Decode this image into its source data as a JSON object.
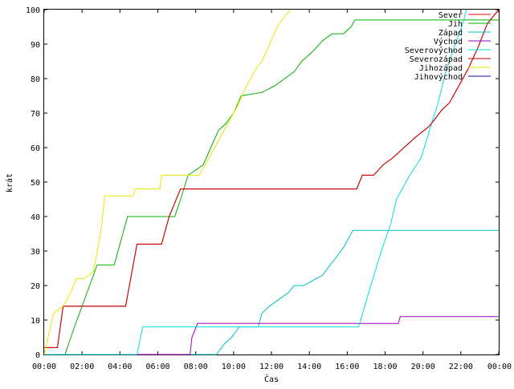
{
  "chart_data": {
    "type": "line",
    "title": "",
    "xlabel": "Čas",
    "ylabel": "krát",
    "xlim": [
      0,
      24
    ],
    "ylim": [
      0,
      100
    ],
    "x_ticks": [
      {
        "value": 0,
        "label": "00:00"
      },
      {
        "value": 2,
        "label": "02:00"
      },
      {
        "value": 4,
        "label": "04:00"
      },
      {
        "value": 6,
        "label": "06:00"
      },
      {
        "value": 8,
        "label": "08:00"
      },
      {
        "value": 10,
        "label": "10:00"
      },
      {
        "value": 12,
        "label": "12:00"
      },
      {
        "value": 14,
        "label": "14:00"
      },
      {
        "value": 16,
        "label": "16:00"
      },
      {
        "value": 18,
        "label": "18:00"
      },
      {
        "value": 20,
        "label": "20:00"
      },
      {
        "value": 22,
        "label": "22:00"
      },
      {
        "value": 24,
        "label": "00:00"
      }
    ],
    "y_ticks": [
      0,
      10,
      20,
      30,
      40,
      50,
      60,
      70,
      80,
      90,
      100
    ],
    "grid": false,
    "legend_position": "top-right",
    "series": [
      {
        "name": "Sever",
        "color": "#ff0000",
        "x": [
          0,
          0.7,
          1.0,
          4.3,
          4.9,
          6.2,
          6.6,
          6.9,
          7.2,
          16.5,
          16.8,
          17.4,
          17.9,
          18.4,
          19.0,
          19.6,
          20.3,
          20.6,
          21.0,
          21.4,
          21.9,
          22.4,
          22.9,
          23.4,
          24.0
        ],
        "y": [
          2,
          2,
          14,
          14,
          32,
          32,
          40,
          44,
          48,
          48,
          52,
          52,
          55,
          57,
          60,
          63,
          66,
          68,
          71,
          73,
          78,
          83,
          89,
          96,
          100
        ]
      },
      {
        "name": "Jih",
        "color": "#00b000",
        "x": [
          0,
          1.1,
          1.6,
          2.4,
          2.8,
          3.7,
          4.4,
          6.9,
          7.2,
          7.6,
          8.4,
          8.8,
          9.2,
          9.6,
          10.0,
          10.4,
          11.5,
          12.2,
          12.7,
          13.2,
          13.6,
          14.2,
          14.7,
          15.2,
          15.8,
          16.2,
          16.4,
          24.0
        ],
        "y": [
          0,
          0,
          8,
          20,
          26,
          26,
          40,
          40,
          45,
          52,
          55,
          60,
          65,
          67,
          70,
          75,
          76,
          78,
          80,
          82,
          85,
          88,
          91,
          93,
          93,
          95,
          97,
          97
        ]
      },
      {
        "name": "Západ",
        "color": "#00c0c0",
        "x": [
          0,
          9.1,
          9.5,
          9.9,
          10.3,
          11.3,
          11.5,
          11.9,
          12.4,
          12.9,
          13.2,
          13.7,
          14.7,
          15.1,
          15.4,
          15.8,
          16.3,
          24.0
        ],
        "y": [
          0,
          0,
          3,
          5,
          8,
          8,
          12,
          14,
          16,
          18,
          20,
          20,
          23,
          26,
          28,
          31,
          36,
          36
        ]
      },
      {
        "name": "Východ",
        "color": "#a000c0",
        "x": [
          0,
          7.7,
          7.8,
          8.1,
          18.7,
          18.8,
          24.0
        ],
        "y": [
          0,
          0,
          5,
          9,
          9,
          11,
          11
        ]
      },
      {
        "name": "Severovýchod",
        "color": "#00e0e0",
        "x": [
          0,
          4.9,
          5.2,
          16.6,
          17.3,
          17.8,
          18.3,
          18.6,
          19.3,
          19.9,
          20.4,
          20.8,
          21.2,
          21.7,
          22.1,
          22.3
        ],
        "y": [
          0,
          0,
          8,
          8,
          21,
          30,
          38,
          45,
          52,
          57,
          66,
          73,
          82,
          90,
          96,
          100
        ]
      },
      {
        "name": "Severozápad",
        "color": "#c00000",
        "x": [
          0,
          0.7,
          1.0,
          4.3,
          4.9,
          6.2,
          6.6,
          6.9,
          7.2,
          16.5,
          16.8,
          17.4,
          17.9,
          18.4,
          19.0,
          19.6,
          20.3,
          20.6,
          21.0,
          21.4,
          21.9,
          22.4,
          22.9,
          23.4,
          24.0
        ],
        "y": [
          2,
          2,
          14,
          14,
          32,
          32,
          40,
          44,
          48,
          48,
          52,
          52,
          55,
          57,
          60,
          63,
          66,
          68,
          71,
          73,
          78,
          83,
          89,
          96,
          100
        ]
      },
      {
        "name": "Jihozápad",
        "color": "#e8e800",
        "x": [
          0,
          0.5,
          1.0,
          1.4,
          1.7,
          2.1,
          2.6,
          3.0,
          3.2,
          4.7,
          4.8,
          6.1,
          6.2,
          7.6,
          7.7,
          8.2,
          8.6,
          9.0,
          9.4,
          9.8,
          10.2,
          10.6,
          11.2,
          11.5,
          11.9,
          12.3,
          12.7,
          13.0
        ],
        "y": [
          0,
          12,
          14,
          18,
          22,
          22,
          24,
          36,
          46,
          46,
          48,
          48,
          52,
          52,
          52,
          52,
          56,
          60,
          64,
          68,
          72,
          77,
          83,
          85,
          90,
          95,
          98,
          100
        ]
      },
      {
        "name": "Jihovýchod",
        "color": "#2000a0",
        "x": [],
        "y": []
      }
    ]
  }
}
